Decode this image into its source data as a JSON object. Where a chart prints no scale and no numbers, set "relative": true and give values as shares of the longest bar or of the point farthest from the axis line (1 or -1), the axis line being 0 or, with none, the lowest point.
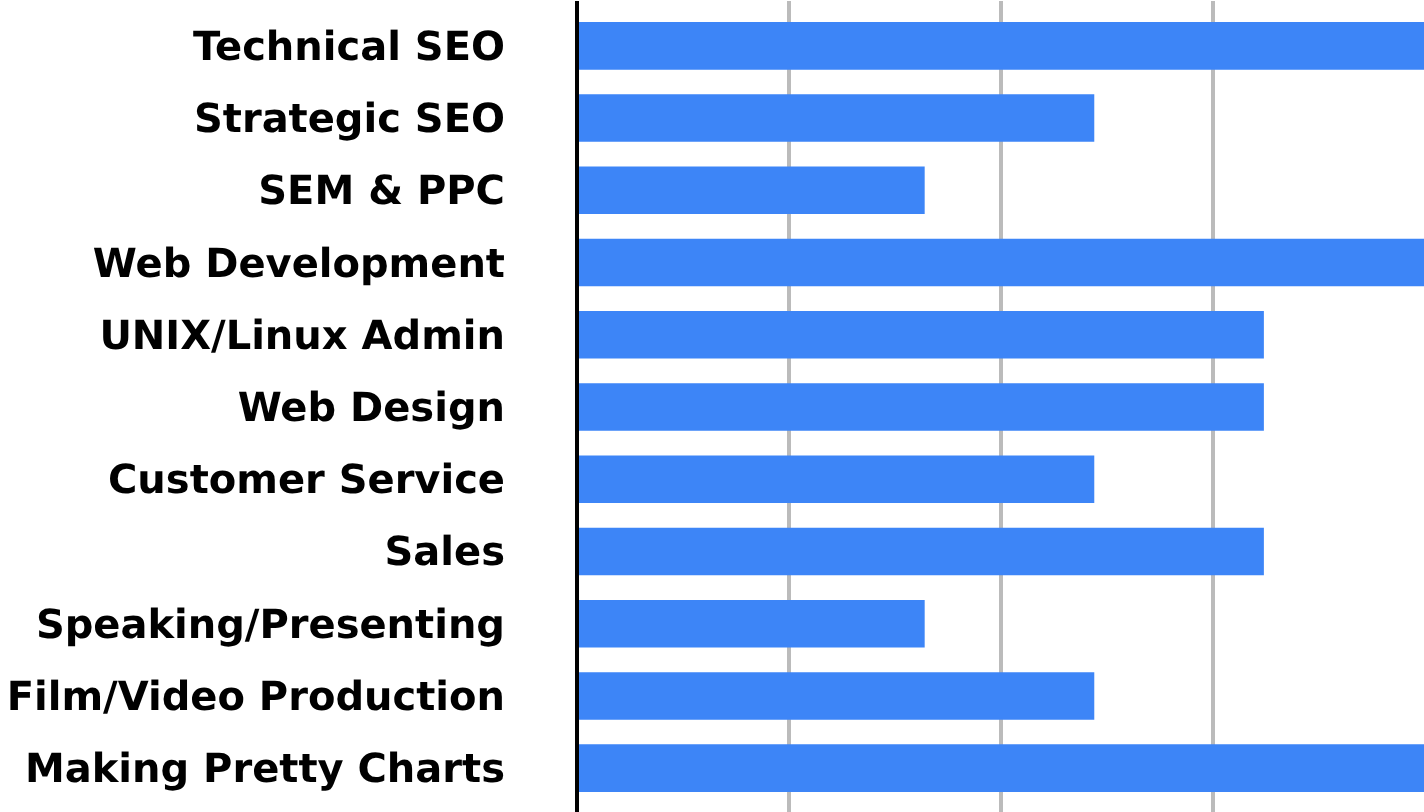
{
  "chart_data": {
    "type": "bar",
    "orientation": "horizontal",
    "relative": true,
    "grid": "x",
    "categories": [
      "Technical SEO",
      "Strategic SEO",
      "SEM & PPC",
      "Web Development",
      "UNIX/Linux Admin",
      "Web Design",
      "Customer Service",
      "Sales",
      "Speaking/Presenting",
      "Film/Video Production",
      "Making Pretty Charts"
    ],
    "values": [
      1,
      0.61,
      0.41,
      1,
      0.81,
      0.81,
      0.61,
      0.81,
      0.41,
      0.61,
      1
    ],
    "color": "#3d85f7"
  }
}
